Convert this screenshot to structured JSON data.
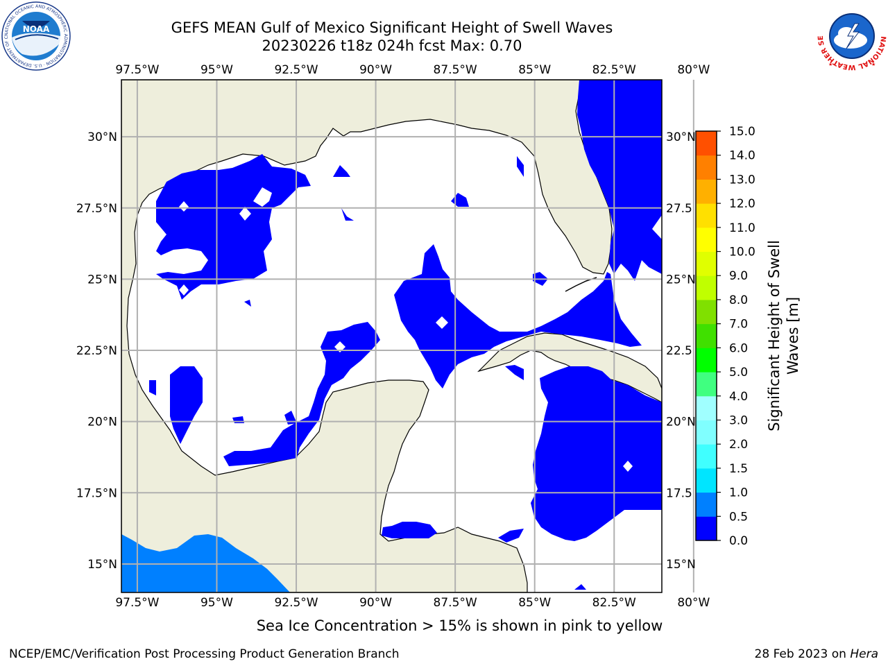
{
  "title": {
    "line1": "GEFS MEAN Gulf of Mexico Significant Height of Swell Waves",
    "line2": "20230226 t18z 024h fcst   Max: 0.70"
  },
  "map": {
    "lon_range": [
      -98,
      -81
    ],
    "lat_range": [
      14,
      32
    ],
    "lon_ticks": [
      "97.5°W",
      "95°W",
      "92.5°W",
      "90°W",
      "87.5°W",
      "85°W",
      "82.5°W",
      "80°W"
    ],
    "lon_tick_values": [
      -97.5,
      -95,
      -92.5,
      -90,
      -87.5,
      -85,
      -82.5,
      -80
    ],
    "lat_ticks_left": [
      "30°N",
      "27.5°N",
      "25°N",
      "22.5°N",
      "20°N",
      "17.5°N",
      "15°N"
    ],
    "lat_ticks_right": [
      "30°N",
      "27.5",
      "25°N",
      "22.5",
      "20°N",
      "17.5",
      "15°N"
    ],
    "lat_tick_values": [
      30,
      27.5,
      25,
      22.5,
      20,
      17.5,
      15
    ],
    "grid": true,
    "land_color": "#eeeedc",
    "water_color": "#ffffff"
  },
  "colorbar": {
    "label_line1": "Significant Height of Swell",
    "label_line2": "Waves [m]",
    "ticks": [
      "0.0",
      "0.5",
      "1.0",
      "1.5",
      "2.0",
      "3.0",
      "4.0",
      "5.0",
      "6.0",
      "7.0",
      "8.0",
      "9.0",
      "10.0",
      "11.0",
      "12.0",
      "13.0",
      "14.0",
      "15.0"
    ],
    "colors": [
      "#0000ff",
      "#0080ff",
      "#00e5ff",
      "#40ffff",
      "#80ffff",
      "#a0ffff",
      "#40ff80",
      "#00ff00",
      "#40e000",
      "#80e000",
      "#c0ff00",
      "#e0ff00",
      "#ffff00",
      "#ffe000",
      "#ffb000",
      "#ff8000",
      "#ff5000",
      "#ff2000",
      "#ff0000"
    ]
  },
  "subtitle": "Sea Ice Concentration > 15% is shown in pink to yellow",
  "footer": {
    "left": "NCEP/EMC/Verification Post Processing Product Generation Branch",
    "right_date": "28 Feb 2023 on ",
    "right_host": "Hera"
  },
  "logos": {
    "noaa_text": "NOAA",
    "noaa_ring": "NATIONAL OCEANIC AND ATMOSPHERIC ADMINISTRATION · U.S. DEPARTMENT OF COMMERCE",
    "nws_ring": "NATIONAL WEATHER SERVICE"
  }
}
